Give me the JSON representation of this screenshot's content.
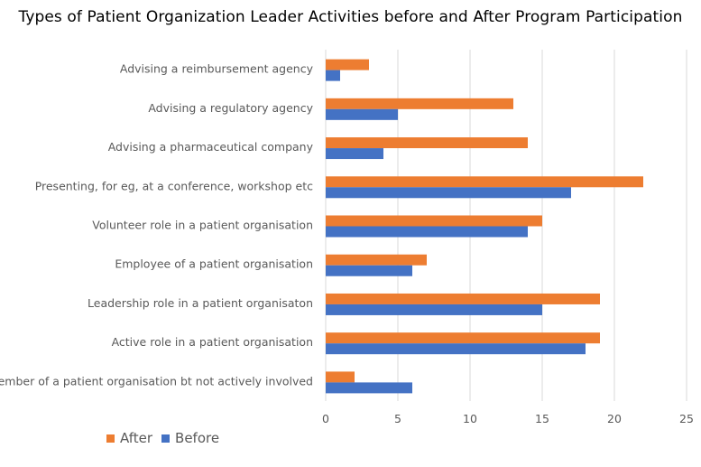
{
  "chart_data": {
    "type": "bar",
    "orientation": "horizontal",
    "title": "Types of Patient Organization Leader Activities before and After Program Participation",
    "categories": [
      "Advising a reimbursement agency",
      "Advising a regulatory agency",
      "Advising a pharmaceutical company",
      "Presenting, for eg, at a conference, workshop etc",
      "Volunteer role in a patient organisation",
      "Employee of a patient organisation",
      "Leadership role in a patient organisaton",
      "Active role in a patient organisation",
      "Member of a patient organisation bt not actively involved"
    ],
    "series": [
      {
        "name": "After",
        "color": "#ED7D31",
        "values": [
          3,
          13,
          14,
          22,
          15,
          7,
          19,
          19,
          2
        ]
      },
      {
        "name": "Before",
        "color": "#4472C4",
        "values": [
          1,
          5,
          4,
          17,
          14,
          6,
          15,
          18,
          6
        ]
      }
    ],
    "xlim": [
      0,
      25
    ],
    "xticks": [
      0,
      5,
      10,
      15,
      20,
      25
    ],
    "grid": true,
    "legend_position": "bottom-left",
    "gridline_color": "#D9D9D9"
  }
}
